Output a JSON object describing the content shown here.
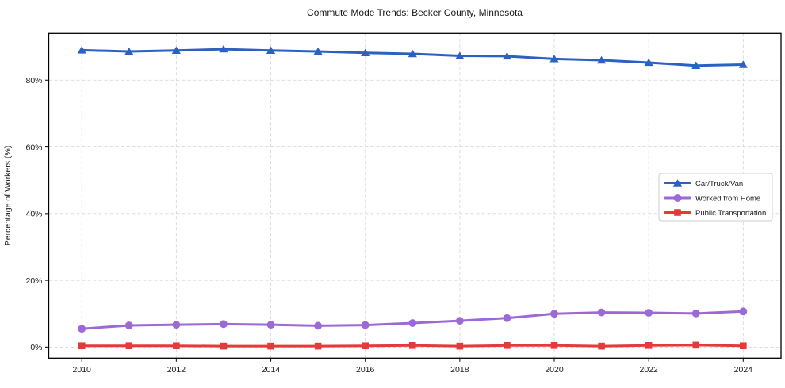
{
  "chart_data": {
    "type": "line",
    "title": "Commute Mode Trends: Becker County, Minnesota",
    "xlabel": "",
    "ylabel": "Percentage of Workers (%)",
    "x": [
      2010,
      2011,
      2012,
      2013,
      2014,
      2015,
      2016,
      2017,
      2018,
      2019,
      2020,
      2021,
      2022,
      2023,
      2024
    ],
    "series": [
      {
        "name": "Car/Truck/Van",
        "color": "#2b62c1",
        "marker": "triangle",
        "values": [
          89.0,
          88.6,
          88.9,
          89.3,
          88.9,
          88.6,
          88.2,
          87.9,
          87.3,
          87.2,
          86.4,
          86.0,
          85.3,
          84.4,
          84.7
        ]
      },
      {
        "name": "Worked from Home",
        "color": "#9c6ad6",
        "marker": "circle",
        "values": [
          5.5,
          6.5,
          6.7,
          6.9,
          6.7,
          6.4,
          6.6,
          7.2,
          7.9,
          8.7,
          10.0,
          10.4,
          10.3,
          10.1,
          10.7
        ]
      },
      {
        "name": "Public Transportation",
        "color": "#e33b3b",
        "marker": "square",
        "values": [
          0.4,
          0.4,
          0.4,
          0.3,
          0.3,
          0.3,
          0.4,
          0.5,
          0.3,
          0.5,
          0.5,
          0.3,
          0.5,
          0.6,
          0.4
        ]
      }
    ],
    "x_ticks": [
      2010,
      2012,
      2014,
      2016,
      2018,
      2020,
      2022,
      2024
    ],
    "x_tick_labels": [
      "2010",
      "2012",
      "2014",
      "2016",
      "2018",
      "2020",
      "2022",
      "2024"
    ],
    "y_ticks": [
      0,
      20,
      40,
      60,
      80
    ],
    "y_tick_labels": [
      "0%",
      "20%",
      "40%",
      "60%",
      "80%"
    ],
    "xlim": [
      2009.3,
      2024.8
    ],
    "ylim": [
      -3.3,
      94
    ],
    "grid": true,
    "grid_style": "dashed",
    "legend_position": "center right",
    "colors": {
      "grid": "#d8d8d8",
      "axis": "#000000",
      "text": "#1a1a1a",
      "legend_border": "#cccccc",
      "background": "#ffffff"
    }
  }
}
